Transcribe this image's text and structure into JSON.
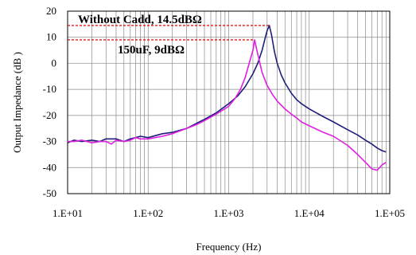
{
  "chart_data": {
    "type": "line",
    "title": "",
    "xlabel": "Frequency (Hz)",
    "ylabel": "Output Impedance (dB )",
    "x_scale": "log",
    "xlim": [
      10,
      100000
    ],
    "ylim": [
      -50,
      20
    ],
    "x_ticks": [
      "1.E+01",
      "1.E+02",
      "1.E+03",
      "1.E+04",
      "1.E+05"
    ],
    "y_ticks": [
      "20",
      "10",
      "0",
      "-10",
      "-20",
      "-30",
      "-40",
      "-50"
    ],
    "grid": true,
    "annotations": [
      {
        "text": "Without Cadd, 14.5dBΩ",
        "level": 14.5
      },
      {
        "text": "150uF, 9dBΩ",
        "level": 9
      }
    ],
    "series": [
      {
        "color": "#1f1f7a",
        "x": [
          10,
          12,
          15,
          20,
          25,
          30,
          40,
          50,
          60,
          70,
          80,
          100,
          150,
          200,
          300,
          400,
          500,
          700,
          1000,
          1300,
          1600,
          2000,
          2300,
          2600,
          2800,
          3000,
          3200,
          3400,
          3700,
          4000,
          4500,
          5000,
          6000,
          7000,
          8000,
          10000,
          15000,
          20000,
          30000,
          40000,
          50000,
          60000,
          70000,
          80000,
          90000
        ],
        "y": [
          -30.5,
          -29.5,
          -30,
          -29.5,
          -30,
          -29,
          -29,
          -30,
          -29,
          -28.5,
          -28,
          -28.5,
          -27,
          -26.5,
          -25,
          -23,
          -21.5,
          -19,
          -15.5,
          -12.5,
          -9,
          -4,
          0,
          5,
          9,
          12.5,
          14.5,
          11,
          4.5,
          0,
          -4.5,
          -7.5,
          -11.5,
          -14,
          -15.5,
          -17.5,
          -20.5,
          -22.5,
          -25.5,
          -27.5,
          -29.5,
          -31,
          -32.5,
          -33.5,
          -34
        ]
      },
      {
        "color": "#e020e0",
        "x": [
          10,
          12,
          15,
          20,
          25,
          30,
          35,
          40,
          50,
          60,
          70,
          80,
          100,
          150,
          200,
          300,
          400,
          500,
          700,
          1000,
          1200,
          1400,
          1600,
          1800,
          2000,
          2100,
          2200,
          2400,
          2600,
          3000,
          3500,
          4000,
          5000,
          6000,
          7000,
          8000,
          10000,
          15000,
          20000,
          30000,
          40000,
          50000,
          60000,
          70000,
          80000,
          90000
        ],
        "y": [
          -30,
          -30,
          -29.5,
          -30.5,
          -30,
          -30,
          -31,
          -29.5,
          -30,
          -29.5,
          -28.5,
          -29,
          -29,
          -28,
          -27,
          -25,
          -23.5,
          -22,
          -19.5,
          -16.5,
          -13.5,
          -10,
          -5.5,
          0,
          5,
          9,
          6,
          1,
          -3.5,
          -8.5,
          -12,
          -14.5,
          -17.5,
          -19.5,
          -21,
          -22.5,
          -24,
          -26.5,
          -28,
          -31.5,
          -35,
          -38,
          -40.5,
          -41,
          -39,
          -38
        ]
      }
    ]
  }
}
